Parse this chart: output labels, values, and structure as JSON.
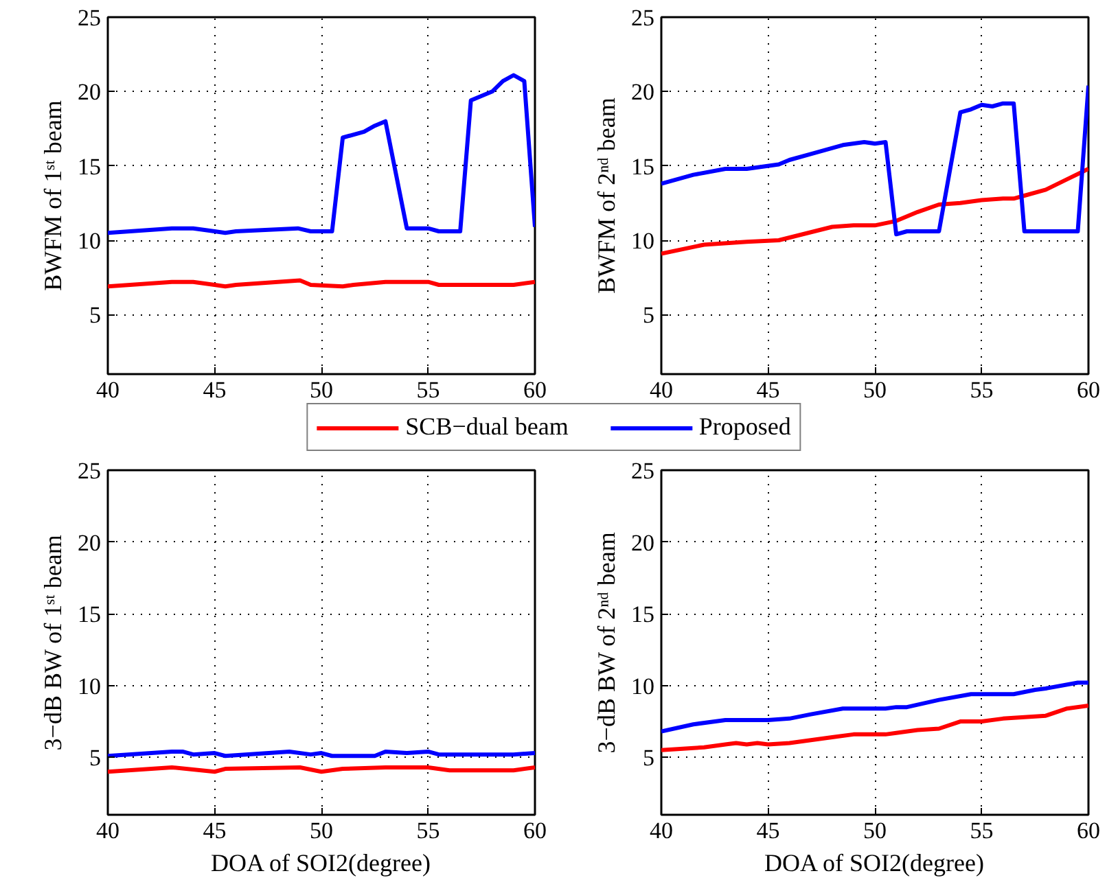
{
  "chart_data": [
    {
      "type": "line",
      "ylabel": "BWFM of 1ˢᵗ beam",
      "xlim": [
        40,
        60
      ],
      "ylim": [
        1,
        25
      ],
      "xticks": [
        40,
        45,
        50,
        55,
        60
      ],
      "yticks": [
        5,
        10,
        15,
        20,
        25
      ],
      "grid": true,
      "legend": "bottom",
      "line_style": "solid",
      "series": [
        {
          "name": "SCB−dual beam",
          "color": "#ff0000",
          "x": [
            40,
            43,
            44,
            45,
            45.5,
            46,
            49,
            49.5,
            51,
            51.5,
            53,
            55,
            55.5,
            59,
            60
          ],
          "values": [
            6.9,
            7.2,
            7.2,
            7.0,
            6.9,
            7.0,
            7.3,
            7.0,
            6.9,
            7.0,
            7.2,
            7.2,
            7.0,
            7.0,
            7.2
          ]
        },
        {
          "name": "Proposed",
          "color": "#0000ff",
          "x": [
            40,
            43,
            44,
            45,
            45.5,
            46,
            48.9,
            49.5,
            50.5,
            51,
            52,
            52.5,
            53,
            54,
            55,
            55.5,
            56.5,
            57,
            58,
            58.5,
            59,
            59.5,
            60
          ],
          "values": [
            10.5,
            10.8,
            10.8,
            10.6,
            10.5,
            10.6,
            10.8,
            10.6,
            10.6,
            16.9,
            17.3,
            17.7,
            18.0,
            10.8,
            10.8,
            10.6,
            10.6,
            19.4,
            20.0,
            20.7,
            21.1,
            20.7,
            10.9
          ]
        }
      ]
    },
    {
      "type": "line",
      "ylabel": "BWFM of 2ⁿᵈ beam",
      "xlim": [
        40,
        60
      ],
      "ylim": [
        1,
        25
      ],
      "xticks": [
        40,
        45,
        50,
        55,
        60
      ],
      "yticks": [
        5,
        10,
        15,
        20,
        25
      ],
      "grid": true,
      "line_style": "solid",
      "series": [
        {
          "color": "#ff0000",
          "x": [
            40,
            42,
            44,
            45.5,
            48,
            49,
            50,
            51,
            52,
            53,
            54,
            55,
            56,
            56.5,
            57,
            58,
            59,
            60
          ],
          "values": [
            9.1,
            9.7,
            9.9,
            10.0,
            10.9,
            11.0,
            11.0,
            11.3,
            11.9,
            12.4,
            12.5,
            12.7,
            12.8,
            12.8,
            13.0,
            13.4,
            14.1,
            14.8
          ]
        },
        {
          "color": "#0000ff",
          "x": [
            40,
            41.5,
            43,
            44,
            45.5,
            46,
            47,
            48.5,
            49.5,
            50,
            50.5,
            51,
            51.5,
            53,
            54,
            54.5,
            55,
            55.5,
            56,
            56.5,
            57,
            59.5,
            60
          ],
          "values": [
            13.8,
            14.4,
            14.8,
            14.8,
            15.1,
            15.4,
            15.8,
            16.4,
            16.6,
            16.5,
            16.6,
            10.4,
            10.6,
            10.6,
            18.6,
            18.8,
            19.1,
            19.0,
            19.2,
            19.2,
            10.6,
            10.6,
            20.4
          ]
        }
      ]
    },
    {
      "type": "line",
      "xlabel": "DOA of SOI2(degree)",
      "ylabel": "3−dB BW of 1ˢᵗ beam",
      "xlim": [
        40,
        60
      ],
      "ylim": [
        1,
        25
      ],
      "xticks": [
        40,
        45,
        50,
        55,
        60
      ],
      "yticks": [
        5,
        10,
        15,
        20,
        25
      ],
      "grid": true,
      "line_style": "solid",
      "series": [
        {
          "color": "#ff0000",
          "x": [
            40,
            43,
            45,
            45.5,
            49,
            50,
            51,
            53,
            55,
            56,
            59,
            60
          ],
          "values": [
            4.0,
            4.3,
            4.0,
            4.2,
            4.3,
            4.0,
            4.2,
            4.3,
            4.3,
            4.1,
            4.1,
            4.3
          ]
        },
        {
          "color": "#0000ff",
          "x": [
            40,
            43,
            43.5,
            44,
            45,
            45.5,
            48.5,
            49.5,
            50,
            50.5,
            52.5,
            53,
            54,
            55,
            55.5,
            59,
            60
          ],
          "values": [
            5.1,
            5.4,
            5.4,
            5.2,
            5.3,
            5.1,
            5.4,
            5.2,
            5.3,
            5.1,
            5.1,
            5.4,
            5.3,
            5.4,
            5.2,
            5.2,
            5.3
          ]
        }
      ]
    },
    {
      "type": "line",
      "xlabel": "DOA of SOI2(degree)",
      "ylabel": "3−dB BW of 2ⁿᵈ beam",
      "xlim": [
        40,
        60
      ],
      "ylim": [
        1,
        25
      ],
      "xticks": [
        40,
        45,
        50,
        55,
        60
      ],
      "yticks": [
        5,
        10,
        15,
        20,
        25
      ],
      "grid": true,
      "line_style": "solid",
      "series": [
        {
          "color": "#ff0000",
          "x": [
            40,
            42,
            43,
            43.5,
            44,
            44.5,
            45,
            46,
            48,
            49,
            50,
            50.5,
            51,
            52,
            53,
            54,
            55,
            56,
            57,
            58,
            59,
            60
          ],
          "values": [
            5.5,
            5.7,
            5.9,
            6.0,
            5.9,
            6.0,
            5.9,
            6.0,
            6.4,
            6.6,
            6.6,
            6.6,
            6.7,
            6.9,
            7.0,
            7.5,
            7.5,
            7.7,
            7.8,
            7.9,
            8.4,
            8.6
          ]
        },
        {
          "color": "#0000ff",
          "x": [
            40,
            41.5,
            43,
            45,
            46,
            47,
            48.5,
            50.5,
            51,
            51.5,
            53,
            54.5,
            55.5,
            56.5,
            57.5,
            58,
            59.5,
            60
          ],
          "values": [
            6.8,
            7.3,
            7.6,
            7.6,
            7.7,
            8.0,
            8.4,
            8.4,
            8.5,
            8.5,
            9.0,
            9.4,
            9.4,
            9.4,
            9.7,
            9.8,
            10.2,
            10.2
          ]
        }
      ]
    }
  ]
}
